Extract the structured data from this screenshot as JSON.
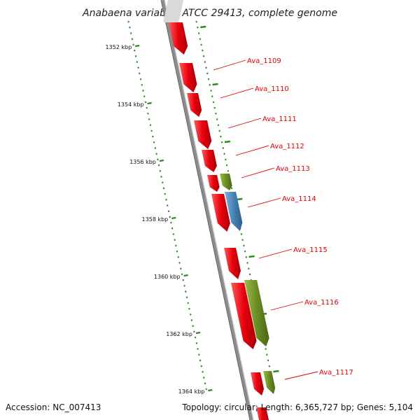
{
  "title": "Anabaena variabilis ATCC 29413, complete genome",
  "ticks": [
    {
      "label": "1352 kbp",
      "kbp": 1352
    },
    {
      "label": "1354 kbp",
      "kbp": 1354
    },
    {
      "label": "1356 kbp",
      "kbp": 1356
    },
    {
      "label": "1358 kbp",
      "kbp": 1358
    },
    {
      "label": "1360 kbp",
      "kbp": 1360
    },
    {
      "label": "1362 kbp",
      "kbp": 1362
    },
    {
      "label": "1364 kbp",
      "kbp": 1364
    }
  ],
  "genes": [
    {
      "label": "Ava_1109",
      "track": "inner",
      "color": "#e8000d"
    },
    {
      "label": "Ava_1110",
      "track": "inner",
      "color": "#e8000d"
    },
    {
      "label": "Ava_1111",
      "track": "inner",
      "color": "#e8000d"
    },
    {
      "label": "Ava_1112",
      "track": "inner",
      "color": "#e8000d"
    },
    {
      "label": "Ava_1113",
      "track": "outer",
      "color": "#6b8e23"
    },
    {
      "label": "Ava_1114",
      "track": "outer",
      "color": "#4682b4"
    },
    {
      "label": "Ava_1115",
      "track": "inner",
      "color": "#e8000d"
    },
    {
      "label": "Ava_1116",
      "track": "outer",
      "color": "#6b8e23"
    },
    {
      "label": "Ava_1117",
      "track": "outer",
      "color": "#6b8e23"
    }
  ],
  "footer": {
    "accession": "Accession: NC_007413",
    "summary": "Topology: circular; Length: 6,365,727 bp; Genes: 5,104"
  },
  "colors": {
    "backbone": "#8c8c8c",
    "tick": "#2e8b22",
    "label_line": "#e00000"
  }
}
